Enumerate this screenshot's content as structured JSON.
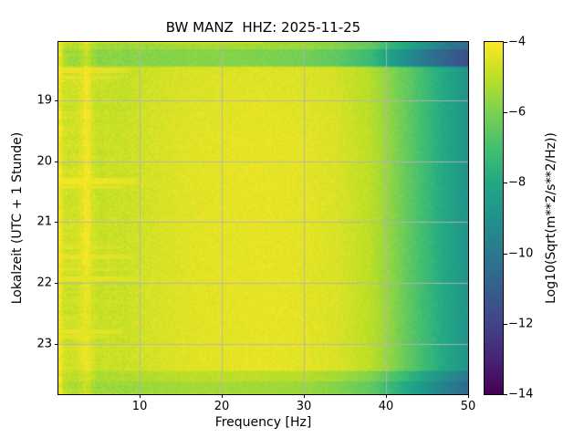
{
  "chart_data": {
    "type": "heatmap",
    "subtype": "seismic-spectrogram",
    "title": "BW MANZ  HHZ: 2025-11-25",
    "xlabel": "Frequency [Hz]",
    "ylabel": "Lokalzeit (UTC + 1 Stunde)",
    "xlim_hz": [
      0.1,
      50
    ],
    "x_ticks_hz": [
      10,
      20,
      30,
      40,
      50
    ],
    "y_ticks_hours": [
      19,
      20,
      21,
      22,
      23
    ],
    "time_range_local": [
      "18:02",
      "23:50"
    ],
    "grid": true,
    "grid_color": "#b3b3ba",
    "colormap": "viridis",
    "colormap_stops": [
      [
        0.0,
        "#440154"
      ],
      [
        0.1,
        "#482475"
      ],
      [
        0.2,
        "#414487"
      ],
      [
        0.3,
        "#355f8d"
      ],
      [
        0.4,
        "#2a788e"
      ],
      [
        0.5,
        "#21918c"
      ],
      [
        0.6,
        "#22a884"
      ],
      [
        0.7,
        "#44bf70"
      ],
      [
        0.8,
        "#7ad151"
      ],
      [
        0.9,
        "#bddf26"
      ],
      [
        1.0,
        "#fde725"
      ]
    ],
    "colorbar": {
      "label": "Log10(Sqrt(m**2/s**2/Hz))",
      "ticks": [
        -4,
        -6,
        -8,
        -10,
        -12,
        -14
      ],
      "vmin": -14,
      "vmax": -4
    },
    "profile_frequencies_hz": [
      0.1,
      0.5,
      1,
      2,
      3.5,
      5,
      8,
      12,
      16,
      20,
      25,
      30,
      34,
      38,
      40,
      42,
      44,
      46,
      48,
      50
    ],
    "spectral_levels_log10": {
      "main_body": [
        -4.05,
        -4.35,
        -4.8,
        -4.75,
        -4.5,
        -4.85,
        -4.8,
        -4.6,
        -4.45,
        -4.4,
        -4.35,
        -4.4,
        -4.55,
        -5.0,
        -5.5,
        -6.2,
        -6.9,
        -7.6,
        -8.3,
        -8.9
      ],
      "top_edge_band": [
        -4.2,
        -4.55,
        -5.4,
        -5.5,
        -5.25,
        -5.7,
        -5.75,
        -5.85,
        -5.8,
        -5.8,
        -5.95,
        -6.1,
        -6.5,
        -7.2,
        -8.1,
        -8.9,
        -9.7,
        -10.4,
        -11.0,
        -11.6
      ],
      "bottom_edge_band": [
        -4.15,
        -4.45,
        -5.15,
        -5.25,
        -5.05,
        -5.45,
        -5.5,
        -5.45,
        -5.35,
        -5.35,
        -5.4,
        -5.5,
        -5.85,
        -6.4,
        -7.1,
        -7.8,
        -8.5,
        -9.2,
        -9.9,
        -10.7
      ]
    },
    "time_bands": {
      "start_hour_decimal": 18.033,
      "end_hour_decimal": 23.833,
      "quiet_top_until": 18.42,
      "quiet_top_strong_from": 18.15,
      "quiet_bottom_from": 23.48,
      "quiet_bottom_strong_from": 23.62,
      "early_evening_dim_until": 19.65
    },
    "tonal_line_hz": 3.5,
    "transient_streaks": [
      {
        "time": 18.5,
        "fmax_hz": 10.0,
        "level": -4.3,
        "halfwidth_h": 0.04
      },
      {
        "time": 18.62,
        "fmax_hz": 8.5,
        "level": -4.35,
        "halfwidth_h": 0.035
      },
      {
        "time": 19.05,
        "fmax_hz": 6.0,
        "level": -4.6,
        "halfwidth_h": 0.025
      },
      {
        "time": 19.72,
        "fmax_hz": 7.0,
        "level": -4.55,
        "halfwidth_h": 0.025
      },
      {
        "time": 20.32,
        "fmax_hz": 11.0,
        "level": -4.15,
        "halfwidth_h": 0.05
      },
      {
        "time": 20.42,
        "fmax_hz": 9.0,
        "level": -4.3,
        "halfwidth_h": 0.035
      },
      {
        "time": 21.08,
        "fmax_hz": 6.5,
        "level": -4.5,
        "halfwidth_h": 0.025
      },
      {
        "time": 21.42,
        "fmax_hz": 9.0,
        "level": -4.4,
        "halfwidth_h": 0.03
      },
      {
        "time": 21.57,
        "fmax_hz": 11.0,
        "level": -4.3,
        "halfwidth_h": 0.035
      },
      {
        "time": 21.77,
        "fmax_hz": 8.0,
        "level": -4.4,
        "halfwidth_h": 0.03
      },
      {
        "time": 21.93,
        "fmax_hz": 12.0,
        "level": -4.3,
        "halfwidth_h": 0.04
      },
      {
        "time": 22.8,
        "fmax_hz": 9.0,
        "level": -4.3,
        "halfwidth_h": 0.04
      },
      {
        "time": 22.88,
        "fmax_hz": 7.0,
        "level": -4.4,
        "halfwidth_h": 0.03
      }
    ]
  }
}
